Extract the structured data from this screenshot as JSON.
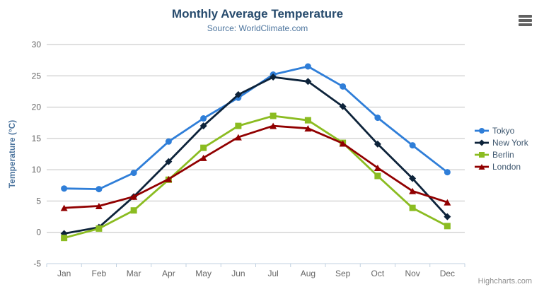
{
  "chart": {
    "credits": "Highcharts.com",
    "context_button": "hamburger-menu"
  },
  "chart_data": {
    "type": "line",
    "title": "Monthly Average Temperature",
    "subtitle": "Source: WorldClimate.com",
    "xlabel": "",
    "ylabel": "Temperature (°C)",
    "ylim": [
      -5,
      30
    ],
    "ytick_interval": 5,
    "grid": true,
    "legend_position": "right",
    "categories": [
      "Jan",
      "Feb",
      "Mar",
      "Apr",
      "May",
      "Jun",
      "Jul",
      "Aug",
      "Sep",
      "Oct",
      "Nov",
      "Dec"
    ],
    "series": [
      {
        "name": "Tokyo",
        "color": "#2f7ed8",
        "marker": "circle",
        "values": [
          7.0,
          6.9,
          9.5,
          14.5,
          18.2,
          21.5,
          25.2,
          26.5,
          23.3,
          18.3,
          13.9,
          9.6
        ]
      },
      {
        "name": "New York",
        "color": "#0d233a",
        "marker": "diamond",
        "values": [
          -0.2,
          0.8,
          5.7,
          11.3,
          17.0,
          22.0,
          24.8,
          24.1,
          20.1,
          14.1,
          8.6,
          2.5
        ]
      },
      {
        "name": "Berlin",
        "color": "#8bbc21",
        "marker": "square",
        "values": [
          -0.9,
          0.6,
          3.5,
          8.4,
          13.5,
          17.0,
          18.6,
          17.9,
          14.3,
          9.0,
          3.9,
          1.0
        ]
      },
      {
        "name": "London",
        "color": "#910000",
        "marker": "triangle",
        "values": [
          3.9,
          4.2,
          5.7,
          8.5,
          11.9,
          15.2,
          17.0,
          16.6,
          14.2,
          10.3,
          6.6,
          4.8
        ]
      }
    ],
    "colors": {
      "gridline": "#c0c0c0",
      "axis_line": "#c0d0e0",
      "tick_label": "#666666",
      "title": "#274b6d",
      "subtitle": "#4d759e"
    }
  }
}
